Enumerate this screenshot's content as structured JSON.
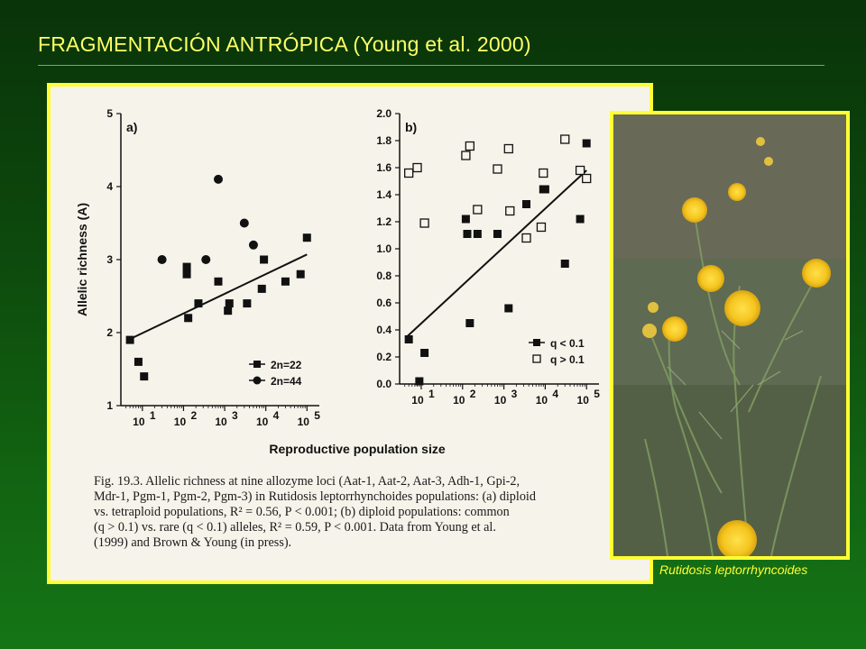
{
  "slide": {
    "title": "FRAGMENTACIÓN ANTRÓPICA (Young et al. 2000)",
    "photo_caption": "Rutidosis leptorrhyncoides"
  },
  "colors": {
    "title": "#ffff66",
    "frame": "#ffff33",
    "background": "#0d4a0d"
  },
  "figure": {
    "caption_lines": [
      "Fig. 19.3. Allelic richness at nine allozyme loci (Aat-1, Aat-2, Aat-3, Adh-1, Gpi-2,",
      "Mdr-1, Pgm-1, Pgm-2, Pgm-3) in Rutidosis leptorrhynchoides populations: (a) diploid",
      "vs. tetraploid populations, R² = 0.56, P < 0.001; (b) diploid populations: common",
      "(q > 0.1) vs. rare (q < 0.1) alleles, R² = 0.59, P < 0.001. Data from Young et al.",
      "(1999) and Brown & Young (in press)."
    ],
    "shared_xlabel": "Reproductive population size"
  },
  "chart_data": [
    {
      "type": "scatter",
      "panel_label": "a)",
      "ylabel": "Allelic richness (A)",
      "xlabel": "Reproductive population size",
      "xscale": "log",
      "xlim": [
        3,
        200000
      ],
      "ylim": [
        1,
        5
      ],
      "x_ticks": [
        10,
        100,
        1000,
        10000,
        100000
      ],
      "x_tick_labels": [
        "10",
        "10",
        "10",
        "10",
        "10"
      ],
      "x_tick_exponents": [
        "1",
        "2",
        "3",
        "4",
        "5"
      ],
      "y_ticks": [
        1,
        2,
        3,
        4,
        5
      ],
      "y_tick_labels": [
        "1",
        "2",
        "3",
        "4",
        "5"
      ],
      "legend_position": "bottom-right",
      "series": [
        {
          "name": "2n=22",
          "marker": "square",
          "points": [
            [
              5,
              1.9
            ],
            [
              8,
              1.6
            ],
            [
              11,
              1.4
            ],
            [
              120,
              2.9
            ],
            [
              120,
              2.8
            ],
            [
              130,
              2.2
            ],
            [
              230,
              2.4
            ],
            [
              700,
              2.7
            ],
            [
              1200,
              2.3
            ],
            [
              1300,
              2.4
            ],
            [
              3500,
              2.4
            ],
            [
              8000,
              2.6
            ],
            [
              9000,
              3.0
            ],
            [
              30000,
              2.7
            ],
            [
              70000,
              2.8
            ],
            [
              100000,
              3.3
            ]
          ]
        },
        {
          "name": "2n=44",
          "marker": "circle",
          "points": [
            [
              30,
              3.0
            ],
            [
              350,
              3.0
            ],
            [
              700,
              4.1
            ],
            [
              3000,
              3.5
            ],
            [
              5000,
              3.2
            ]
          ]
        }
      ],
      "trend_line": [
        [
          4.5,
          1.9
        ],
        [
          100000,
          3.07
        ]
      ]
    },
    {
      "type": "scatter",
      "panel_label": "b)",
      "xlabel": "Reproductive population size",
      "xscale": "log",
      "xlim": [
        3,
        200000
      ],
      "ylim": [
        0,
        2.0
      ],
      "x_ticks": [
        10,
        100,
        1000,
        10000,
        100000
      ],
      "x_tick_labels": [
        "10",
        "10",
        "10",
        "10",
        "10"
      ],
      "x_tick_exponents": [
        "1",
        "2",
        "3",
        "4",
        "5"
      ],
      "y_ticks": [
        0,
        0.2,
        0.4,
        0.6,
        0.8,
        1.0,
        1.2,
        1.4,
        1.6,
        1.8,
        2.0
      ],
      "y_tick_labels": [
        "0.0",
        "0.2",
        "0.4",
        "0.6",
        "0.8",
        "1.0",
        "1.2",
        "1.4",
        "1.6",
        "1.8",
        "2.0"
      ],
      "legend_position": "bottom-right",
      "series": [
        {
          "name": "q < 0.1",
          "marker": "filled-square",
          "points": [
            [
              5,
              0.33
            ],
            [
              9,
              0.02
            ],
            [
              12,
              0.23
            ],
            [
              120,
              1.22
            ],
            [
              130,
              1.11
            ],
            [
              150,
              0.45
            ],
            [
              230,
              1.11
            ],
            [
              700,
              1.11
            ],
            [
              1300,
              0.56
            ],
            [
              3500,
              1.33
            ],
            [
              9000,
              1.44
            ],
            [
              10000,
              1.44
            ],
            [
              30000,
              0.89
            ],
            [
              70000,
              1.22
            ],
            [
              100000,
              1.78
            ]
          ]
        },
        {
          "name": "q > 0.1",
          "marker": "open-square",
          "points": [
            [
              5,
              1.56
            ],
            [
              8,
              1.6
            ],
            [
              12,
              1.19
            ],
            [
              120,
              1.69
            ],
            [
              150,
              1.76
            ],
            [
              230,
              1.29
            ],
            [
              700,
              1.59
            ],
            [
              1300,
              1.74
            ],
            [
              1400,
              1.28
            ],
            [
              3500,
              1.08
            ],
            [
              8000,
              1.16
            ],
            [
              9000,
              1.56
            ],
            [
              30000,
              1.81
            ],
            [
              70000,
              1.58
            ],
            [
              100000,
              1.52
            ]
          ]
        }
      ],
      "trend_line": [
        [
          4.5,
          0.35
        ],
        [
          100000,
          1.58
        ]
      ]
    }
  ]
}
